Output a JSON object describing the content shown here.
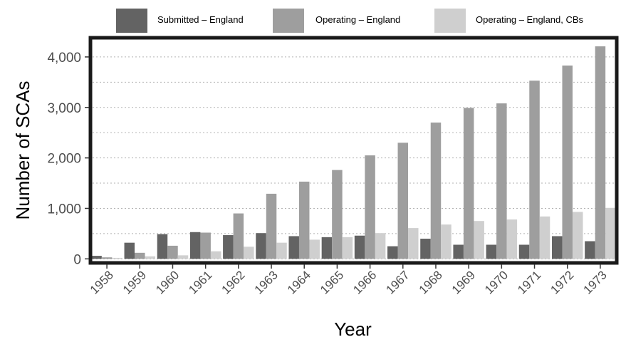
{
  "chart_data": {
    "type": "bar",
    "title": "",
    "xlabel": "Year",
    "ylabel": "Number of SCAs",
    "ylim": [
      -80,
      4380
    ],
    "yticks": [
      0,
      1000,
      2000,
      3000,
      4000
    ],
    "ytick_labels": [
      "0",
      "1,000",
      "2,000",
      "3,000",
      "4,000"
    ],
    "grid": "horizontal dotted",
    "legend_position": "top",
    "categories": [
      "1958",
      "1959",
      "1960",
      "1961",
      "1962",
      "1963",
      "1964",
      "1965",
      "1966",
      "1967",
      "1968",
      "1969",
      "1970",
      "1971",
      "1972",
      "1973"
    ],
    "series": [
      {
        "name": "Submitted – England",
        "color": "#636363",
        "values": [
          60,
          320,
          490,
          530,
          470,
          510,
          450,
          430,
          460,
          250,
          400,
          280,
          280,
          280,
          450,
          350
        ]
      },
      {
        "name": "Operating – England",
        "color": "#9e9e9e",
        "values": [
          30,
          120,
          260,
          520,
          900,
          1290,
          1530,
          1760,
          2050,
          2300,
          2700,
          2990,
          3080,
          3530,
          3830,
          4210
        ]
      },
      {
        "name": "Operating – England, CBs",
        "color": "#cfcfcf",
        "values": [
          20,
          50,
          70,
          150,
          240,
          320,
          380,
          430,
          510,
          610,
          680,
          750,
          780,
          840,
          930,
          1010
        ]
      }
    ]
  }
}
